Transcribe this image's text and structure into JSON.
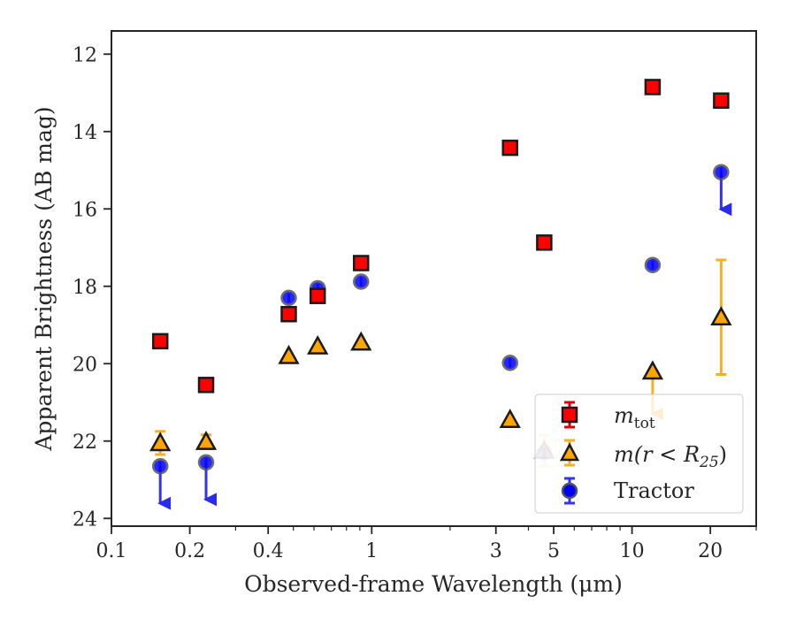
{
  "chart_data": {
    "type": "scatter",
    "xlabel": "Observed-frame Wavelength (μm)",
    "ylabel": "Apparent Brightness (AB mag)",
    "xscale": "log",
    "xlim": [
      0.1,
      30
    ],
    "ylim": [
      24.2,
      11.4
    ],
    "y_inverted": true,
    "x_ticks": [
      {
        "value": 0.1,
        "label": "0.1"
      },
      {
        "value": 0.2,
        "label": "0.2"
      },
      {
        "value": 0.4,
        "label": "0.4"
      },
      {
        "value": 1,
        "label": "1"
      },
      {
        "value": 3,
        "label": "3"
      },
      {
        "value": 5,
        "label": "5"
      },
      {
        "value": 10,
        "label": "10"
      },
      {
        "value": 20,
        "label": "20"
      }
    ],
    "x_minor_ticks": [
      0.3,
      0.5,
      0.6,
      0.7,
      0.8,
      0.9,
      2,
      4,
      6,
      7,
      8,
      9,
      30
    ],
    "y_ticks": [
      {
        "value": 12,
        "label": "12"
      },
      {
        "value": 14,
        "label": "14"
      },
      {
        "value": 16,
        "label": "16"
      },
      {
        "value": 18,
        "label": "18"
      },
      {
        "value": 20,
        "label": "20"
      },
      {
        "value": 22,
        "label": "22"
      },
      {
        "value": 24,
        "label": "24"
      }
    ],
    "grid": false,
    "legend_position": "lower-right",
    "legend": [
      {
        "label_main": "m",
        "label_sub": "tot",
        "marker": "square"
      },
      {
        "label_main": "m(r < R",
        "label_sub": "25",
        "label_tail": ")",
        "marker": "triangle"
      },
      {
        "label_main": "Tractor",
        "label_sub": "",
        "marker": "circle"
      }
    ],
    "series": [
      {
        "name": "m_tot",
        "marker": "square",
        "color": "#ff0000",
        "edge": "#1a1a1a",
        "error_color": "#dd0000",
        "points": [
          {
            "x": 0.154,
            "y": 19.42
          },
          {
            "x": 0.231,
            "y": 20.55
          },
          {
            "x": 0.48,
            "y": 18.72
          },
          {
            "x": 0.62,
            "y": 18.25
          },
          {
            "x": 0.91,
            "y": 17.4
          },
          {
            "x": 3.4,
            "y": 14.42
          },
          {
            "x": 4.6,
            "y": 16.87
          },
          {
            "x": 12.0,
            "y": 12.85
          },
          {
            "x": 22.0,
            "y": 13.2
          }
        ]
      },
      {
        "name": "m(r<R25)",
        "marker": "triangle",
        "color": "#ffa500",
        "edge": "#1a1a1a",
        "error_color": "#f5b025",
        "points": [
          {
            "x": 0.154,
            "y": 22.05,
            "yerr": 0.3
          },
          {
            "x": 0.231,
            "y": 22.02,
            "yerr": 0.18
          },
          {
            "x": 0.48,
            "y": 19.8
          },
          {
            "x": 0.62,
            "y": 19.55
          },
          {
            "x": 0.91,
            "y": 19.45
          },
          {
            "x": 3.4,
            "y": 21.45
          },
          {
            "x": 4.6,
            "y": 22.25,
            "yerr": 0.4,
            "faded": true
          },
          {
            "x": 12.0,
            "y": 20.2,
            "upper_limit": true
          },
          {
            "x": 22.0,
            "y": 18.8,
            "yerr_low": 1.48,
            "yerr_high": 1.48
          }
        ]
      },
      {
        "name": "Tractor",
        "marker": "circle",
        "color": "#0000ff",
        "edge": "#555555",
        "error_color": "#3333ee",
        "points": [
          {
            "x": 0.154,
            "y": 22.65,
            "upper_limit": true
          },
          {
            "x": 0.231,
            "y": 22.55,
            "upper_limit": true
          },
          {
            "x": 0.48,
            "y": 18.3
          },
          {
            "x": 0.62,
            "y": 18.05
          },
          {
            "x": 0.91,
            "y": 17.88
          },
          {
            "x": 3.4,
            "y": 19.98
          },
          {
            "x": 4.6,
            "y": 22.3,
            "faded": true
          },
          {
            "x": 12.0,
            "y": 17.45
          },
          {
            "x": 22.0,
            "y": 15.05,
            "upper_limit": true
          }
        ]
      }
    ]
  }
}
